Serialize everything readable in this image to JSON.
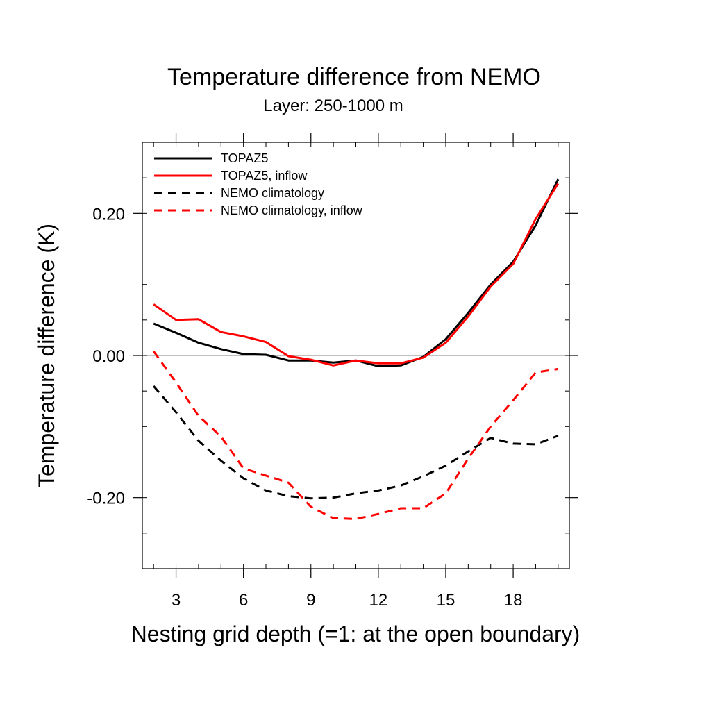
{
  "chart_data": {
    "type": "line",
    "title": "Temperature difference from NEMO",
    "subtitle": "Layer: 250-1000 m",
    "xlabel": "Nesting grid depth (=1: at the open boundary)",
    "ylabel": "Temperature difference (K)",
    "xlim": [
      1.5,
      20.5
    ],
    "ylim": [
      -0.3,
      0.3
    ],
    "x_ticks": [
      3,
      6,
      9,
      12,
      15,
      18
    ],
    "y_ticks": [
      -0.2,
      0.0,
      0.2
    ],
    "y_tick_labels": [
      "-0.20",
      "0.00",
      "0.20"
    ],
    "reference_line": 0.0,
    "grid": false,
    "legend_position": "top-left",
    "x": [
      2,
      3,
      4,
      5,
      6,
      7,
      8,
      9,
      10,
      11,
      12,
      13,
      14,
      15,
      16,
      17,
      18,
      19,
      20
    ],
    "series": [
      {
        "name": "TOPAZ5",
        "color": "#000000",
        "dash": "solid",
        "values": [
          0.045,
          0.032,
          0.018,
          0.009,
          0.002,
          0.001,
          -0.007,
          -0.007,
          -0.01,
          -0.007,
          -0.015,
          -0.014,
          -0.002,
          0.023,
          0.06,
          0.1,
          0.132,
          0.183,
          0.248
        ]
      },
      {
        "name": "TOPAZ5, inflow",
        "color": "#ff0000",
        "dash": "solid",
        "values": [
          0.072,
          0.05,
          0.051,
          0.033,
          0.027,
          0.019,
          -0.001,
          -0.006,
          -0.014,
          -0.007,
          -0.011,
          -0.011,
          -0.003,
          0.018,
          0.055,
          0.097,
          0.129,
          0.192,
          0.242
        ]
      },
      {
        "name": "NEMO climatology",
        "color": "#000000",
        "dash": "dashed",
        "values": [
          -0.043,
          -0.08,
          -0.12,
          -0.148,
          -0.173,
          -0.19,
          -0.198,
          -0.201,
          -0.2,
          -0.194,
          -0.19,
          -0.183,
          -0.17,
          -0.155,
          -0.135,
          -0.116,
          -0.124,
          -0.125,
          -0.113
        ]
      },
      {
        "name": "NEMO climatology, inflow",
        "color": "#ff0000",
        "dash": "dashed",
        "values": [
          0.006,
          -0.038,
          -0.085,
          -0.114,
          -0.159,
          -0.169,
          -0.179,
          -0.213,
          -0.229,
          -0.23,
          -0.223,
          -0.215,
          -0.215,
          -0.194,
          -0.145,
          -0.1,
          -0.063,
          -0.024,
          -0.019
        ]
      }
    ]
  }
}
